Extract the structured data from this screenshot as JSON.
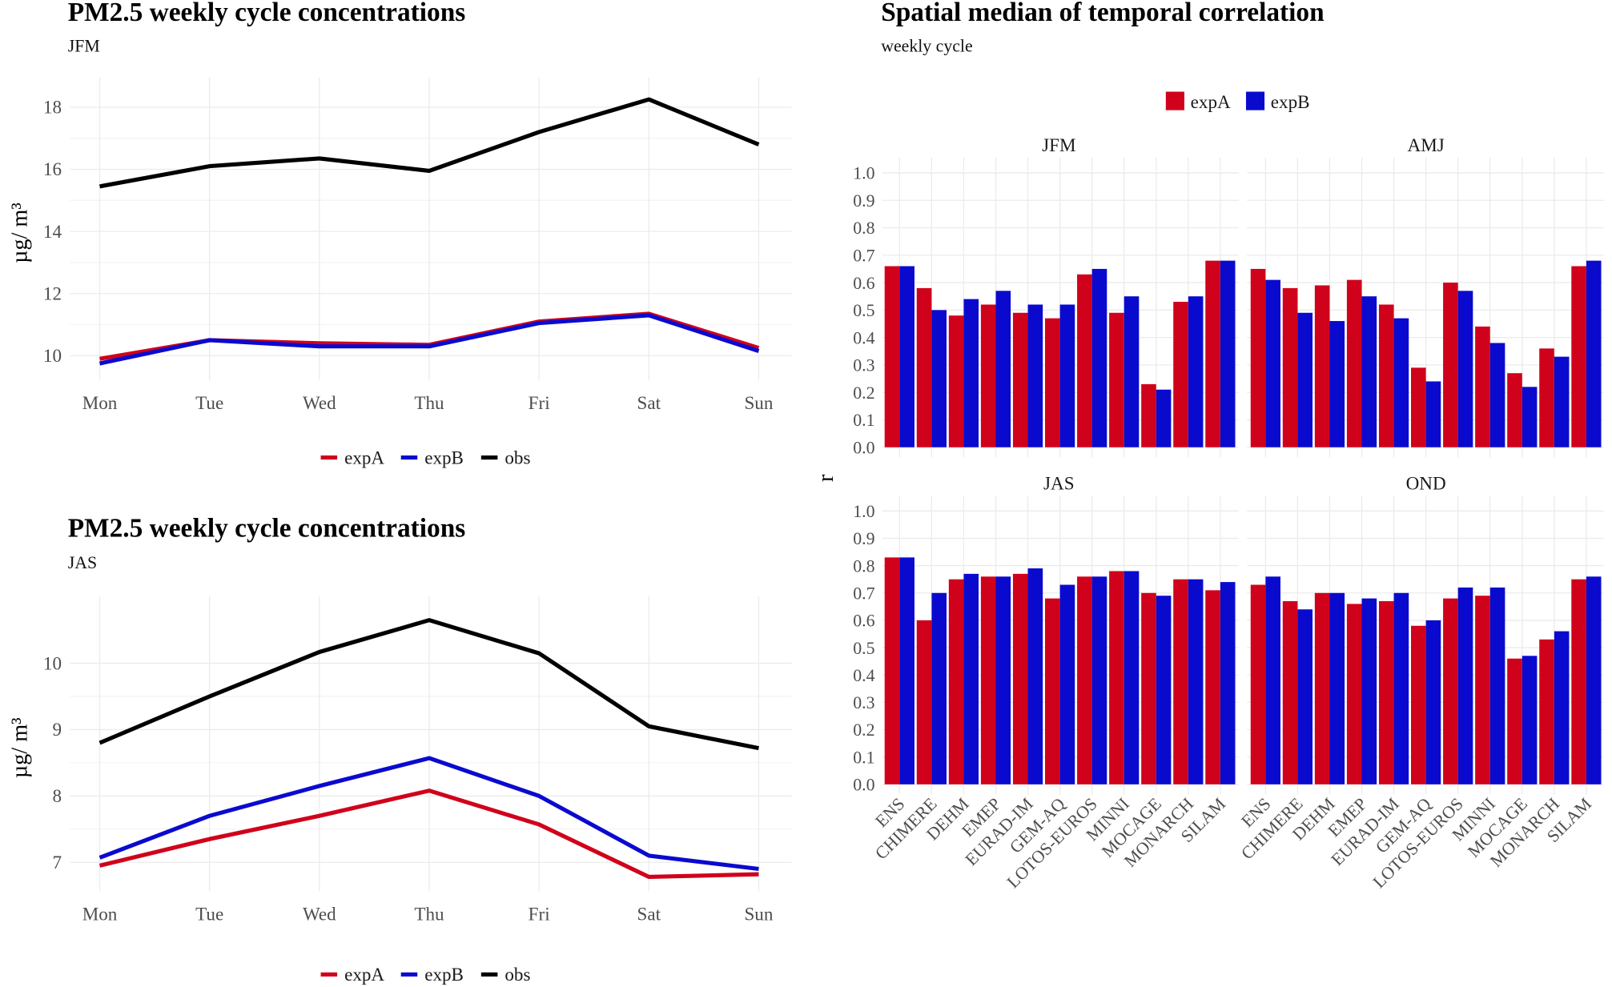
{
  "colors": {
    "expA": "#d0021b",
    "expB": "#0a0acf",
    "obs": "#000000"
  },
  "chart_data": [
    {
      "type": "line",
      "title": "PM2.5 weekly cycle concentrations",
      "subtitle": "JFM",
      "ylabel": "µg/ m³",
      "xlabel": "",
      "categories": [
        "Mon",
        "Tue",
        "Wed",
        "Thu",
        "Fri",
        "Sat",
        "Sun"
      ],
      "yticks": [
        10,
        12,
        14,
        16,
        18
      ],
      "ylim": [
        9.6,
        18.3
      ],
      "grid": true,
      "legend_position": "bottom",
      "series": [
        {
          "name": "expA",
          "values": [
            9.9,
            10.5,
            10.4,
            10.35,
            11.1,
            11.35,
            10.25
          ]
        },
        {
          "name": "expB",
          "values": [
            9.75,
            10.5,
            10.3,
            10.3,
            11.05,
            11.3,
            10.15
          ]
        },
        {
          "name": "obs",
          "values": [
            15.45,
            16.1,
            16.35,
            15.95,
            17.2,
            18.25,
            16.8
          ]
        }
      ]
    },
    {
      "type": "line",
      "title": "PM2.5 weekly cycle concentrations",
      "subtitle": "JAS",
      "ylabel": "µg/ m³",
      "xlabel": "",
      "categories": [
        "Mon",
        "Tue",
        "Wed",
        "Thu",
        "Fri",
        "Sat",
        "Sun"
      ],
      "yticks": [
        7,
        8,
        9,
        10
      ],
      "ylim": [
        6.75,
        10.7
      ],
      "grid": true,
      "legend_position": "bottom",
      "series": [
        {
          "name": "expA",
          "values": [
            6.95,
            7.35,
            7.7,
            8.08,
            7.57,
            6.78,
            6.82
          ]
        },
        {
          "name": "expB",
          "values": [
            7.07,
            7.7,
            8.15,
            8.57,
            8.0,
            7.1,
            6.9
          ]
        },
        {
          "name": "obs",
          "values": [
            8.8,
            9.5,
            10.17,
            10.65,
            10.15,
            9.05,
            8.72
          ]
        }
      ]
    },
    {
      "type": "bar",
      "title": "Spatial median of temporal correlation",
      "subtitle": "weekly cycle",
      "ylabel": "r",
      "xlabel": "",
      "ylim": [
        0,
        1.0
      ],
      "yticks": [
        "0.0",
        "0.1",
        "0.2",
        "0.3",
        "0.4",
        "0.5",
        "0.6",
        "0.7",
        "0.8",
        "0.9",
        "1.0"
      ],
      "grid": true,
      "legend_position": "top",
      "categories": [
        "ENS",
        "CHIMERE",
        "DEHM",
        "EMEP",
        "EURAD-IM",
        "GEM-AQ",
        "LOTOS-EUROS",
        "MINNI",
        "MOCAGE",
        "MONARCH",
        "SILAM"
      ],
      "facets": [
        {
          "name": "JFM",
          "series": [
            {
              "name": "expA",
              "values": [
                0.66,
                0.58,
                0.48,
                0.52,
                0.49,
                0.47,
                0.63,
                0.49,
                0.23,
                0.53,
                0.68
              ]
            },
            {
              "name": "expB",
              "values": [
                0.66,
                0.5,
                0.54,
                0.57,
                0.52,
                0.52,
                0.65,
                0.55,
                0.21,
                0.55,
                0.68
              ]
            }
          ]
        },
        {
          "name": "AMJ",
          "series": [
            {
              "name": "expA",
              "values": [
                0.65,
                0.58,
                0.59,
                0.61,
                0.52,
                0.29,
                0.6,
                0.44,
                0.27,
                0.36,
                0.66
              ]
            },
            {
              "name": "expB",
              "values": [
                0.61,
                0.49,
                0.46,
                0.55,
                0.47,
                0.24,
                0.57,
                0.38,
                0.22,
                0.33,
                0.68
              ]
            }
          ]
        },
        {
          "name": "JAS",
          "series": [
            {
              "name": "expA",
              "values": [
                0.83,
                0.6,
                0.75,
                0.76,
                0.77,
                0.68,
                0.76,
                0.78,
                0.7,
                0.75,
                0.71
              ]
            },
            {
              "name": "expB",
              "values": [
                0.83,
                0.7,
                0.77,
                0.76,
                0.79,
                0.73,
                0.76,
                0.78,
                0.69,
                0.75,
                0.74
              ]
            }
          ]
        },
        {
          "name": "OND",
          "series": [
            {
              "name": "expA",
              "values": [
                0.73,
                0.67,
                0.7,
                0.66,
                0.67,
                0.58,
                0.68,
                0.69,
                0.46,
                0.53,
                0.75
              ]
            },
            {
              "name": "expB",
              "values": [
                0.76,
                0.64,
                0.7,
                0.68,
                0.7,
                0.6,
                0.72,
                0.72,
                0.47,
                0.56,
                0.76
              ]
            }
          ]
        }
      ]
    }
  ]
}
